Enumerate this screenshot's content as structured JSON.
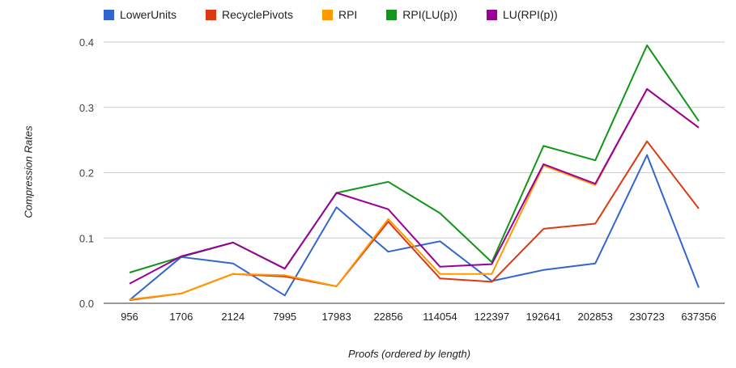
{
  "chart_data": {
    "type": "line",
    "xlabel": "Proofs (ordered by length)",
    "ylabel": "Compression Rates",
    "ylim": [
      0,
      0.4
    ],
    "yticks": [
      "0.0",
      "0.1",
      "0.2",
      "0.3",
      "0.4"
    ],
    "grid": true,
    "legend_position": "top",
    "categories": [
      "956",
      "1706",
      "2124",
      "7995",
      "17983",
      "22856",
      "114054",
      "122397",
      "192641",
      "202853",
      "230723",
      "637356"
    ],
    "series": [
      {
        "name": "LowerUnits",
        "color": "#3366cc",
        "values": [
          0.005,
          0.071,
          0.061,
          0.012,
          0.147,
          0.079,
          0.095,
          0.034,
          0.051,
          0.061,
          0.227,
          0.024
        ]
      },
      {
        "name": "RecyclePivots",
        "color": "#dc3912",
        "values": [
          0.005,
          0.015,
          0.045,
          0.041,
          0.026,
          0.125,
          0.038,
          0.033,
          0.114,
          0.122,
          0.248,
          0.145
        ]
      },
      {
        "name": "RPI",
        "color": "#ff9900",
        "values": [
          0.006,
          0.015,
          0.045,
          0.043,
          0.026,
          0.129,
          0.045,
          0.045,
          0.211,
          0.181,
          0.328,
          0.269
        ]
      },
      {
        "name": "RPI(LU(p))",
        "color": "#109618",
        "values": [
          0.047,
          0.071,
          0.093,
          0.053,
          0.169,
          0.186,
          0.138,
          0.063,
          0.241,
          0.219,
          0.395,
          0.279
        ]
      },
      {
        "name": "LU(RPI(p))",
        "color": "#990099",
        "values": [
          0.03,
          0.072,
          0.093,
          0.053,
          0.169,
          0.144,
          0.056,
          0.06,
          0.213,
          0.183,
          0.328,
          0.269
        ]
      }
    ]
  }
}
